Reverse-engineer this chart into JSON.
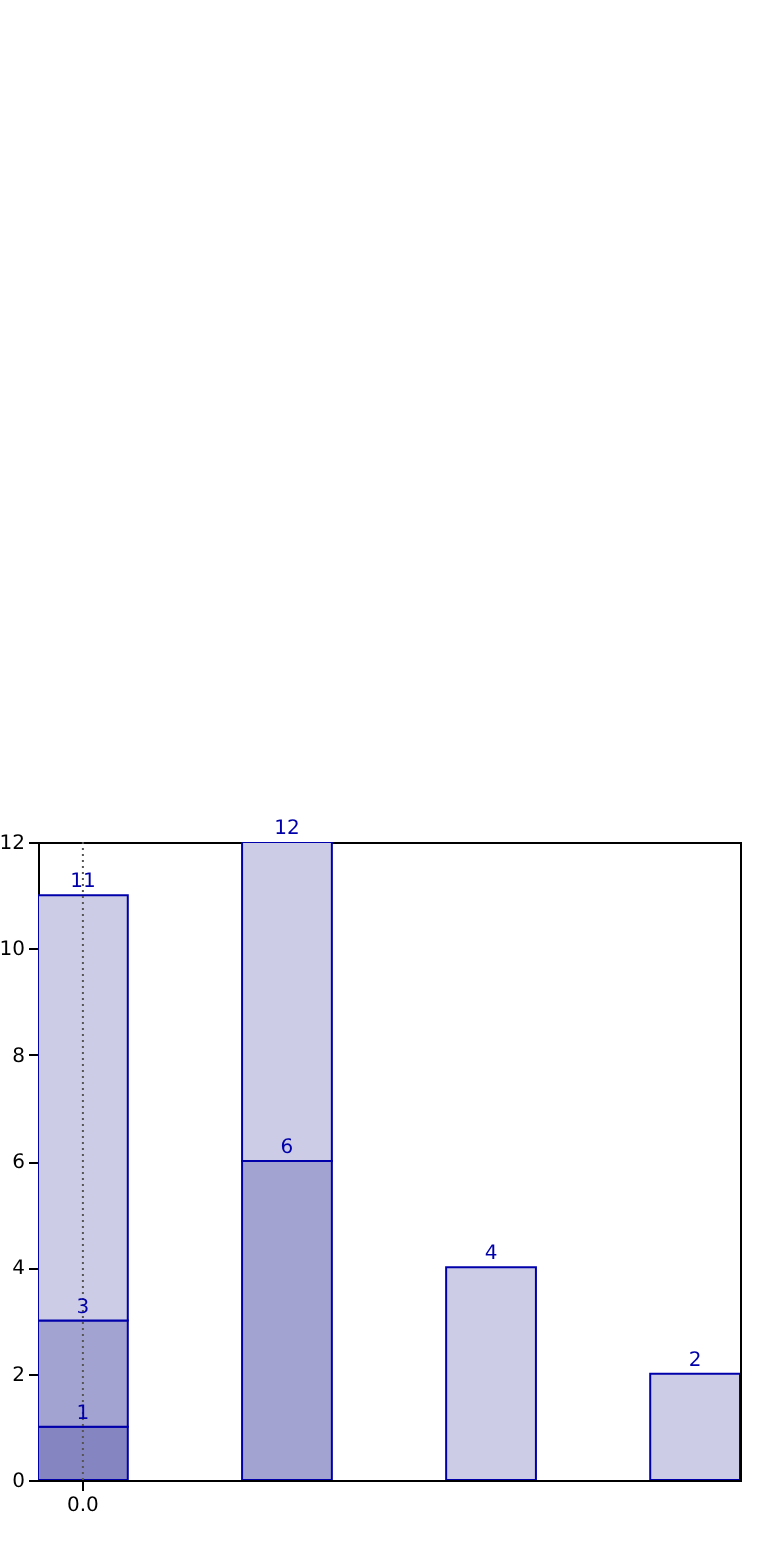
{
  "chart_data": {
    "type": "bar",
    "categories": [
      "0.0",
      null,
      null,
      null
    ],
    "stacked": true,
    "series": [
      {
        "color": "#8585c2",
        "values": [
          1,
          null,
          null,
          null
        ]
      },
      {
        "color": "#a3a3d1",
        "values": [
          2,
          6,
          null,
          null
        ]
      },
      {
        "color": "#ccccE6",
        "values": [
          8,
          6,
          4,
          2
        ]
      }
    ],
    "totals": [
      "11",
      "12",
      "4",
      "2"
    ],
    "annotations": [
      {
        "text": "1",
        "x": "0.0",
        "y": 1
      },
      {
        "text": "3",
        "x": "0.0",
        "y": 3
      },
      {
        "text": "6",
        "y": 6
      }
    ],
    "ref_lines": [
      {
        "axis": "x",
        "value": "0.0",
        "color": "#555555",
        "line_style": "dotted"
      }
    ],
    "ylim": [
      0,
      12
    ],
    "yticks": [
      0,
      2,
      4,
      6,
      8,
      10,
      12
    ]
  }
}
